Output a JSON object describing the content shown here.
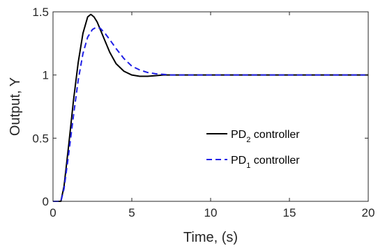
{
  "chart_data": {
    "type": "line",
    "xlabel": "Time, (s)",
    "ylabel": "Output, Y",
    "xlim": [
      0,
      20
    ],
    "ylim": [
      0,
      1.5
    ],
    "xticks": [
      0,
      5,
      10,
      15,
      20
    ],
    "yticks": [
      0,
      0.5,
      1,
      1.5
    ],
    "xtick_labels": [
      "0",
      "5",
      "10",
      "15",
      "20"
    ],
    "ytick_labels": [
      "0",
      "0.5",
      "1",
      "1.5"
    ],
    "grid": false,
    "legend_position": "center-right",
    "series": [
      {
        "name_main": "PD",
        "name_sub": "2",
        "name_rest": " controller",
        "color": "#000000",
        "style": "solid",
        "x": [
          0,
          0.5,
          0.7,
          1.0,
          1.3,
          1.6,
          1.9,
          2.2,
          2.4,
          2.6,
          2.8,
          3.0,
          3.3,
          3.6,
          4.0,
          4.5,
          5.0,
          5.5,
          6.0,
          6.5,
          7.0,
          8.0,
          10,
          12,
          15,
          20
        ],
        "y": [
          0,
          0,
          0.12,
          0.45,
          0.8,
          1.1,
          1.33,
          1.46,
          1.48,
          1.46,
          1.42,
          1.36,
          1.27,
          1.18,
          1.09,
          1.03,
          1.0,
          0.99,
          0.99,
          0.995,
          1.0,
          1.0,
          1.0,
          1.0,
          1.0,
          1.0
        ]
      },
      {
        "name_main": "PD",
        "name_sub": "1",
        "name_rest": " controller",
        "color": "#1f1fe6",
        "style": "dashed",
        "x": [
          0,
          0.5,
          0.7,
          1.0,
          1.3,
          1.6,
          1.9,
          2.2,
          2.5,
          2.7,
          3.0,
          3.3,
          3.6,
          4.0,
          4.5,
          5.0,
          5.5,
          6.0,
          6.5,
          7.0,
          7.5,
          8.0,
          9.0,
          10,
          12,
          15,
          20
        ],
        "y": [
          0,
          0,
          0.1,
          0.38,
          0.68,
          0.96,
          1.17,
          1.3,
          1.36,
          1.375,
          1.37,
          1.33,
          1.28,
          1.21,
          1.13,
          1.07,
          1.04,
          1.02,
          1.01,
          1.005,
          1.0,
          1.0,
          1.0,
          1.0,
          1.0,
          1.0,
          1.0
        ]
      }
    ]
  }
}
